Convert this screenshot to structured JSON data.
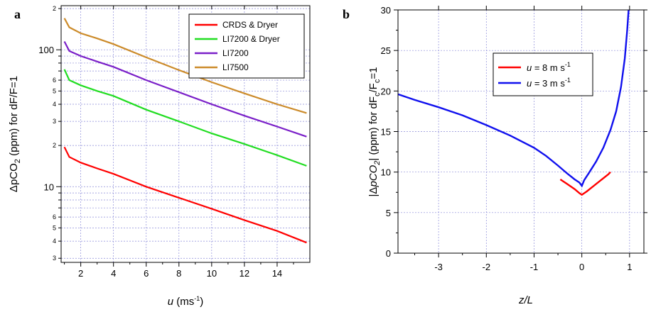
{
  "chart_data": [
    {
      "panel": "a",
      "type": "line",
      "yscale": "log",
      "xlim": [
        0.8,
        16
      ],
      "ylim": [
        2.8,
        210
      ],
      "xticks": [
        2,
        4,
        6,
        8,
        10,
        12,
        14
      ],
      "yticks_major": [
        10,
        100
      ],
      "yticks_minor": [
        3,
        4,
        5,
        6,
        20,
        30,
        40,
        50,
        60,
        200
      ],
      "grid": true,
      "legend_position": "top-right",
      "ylabel_parts": {
        "a": "ΔpCO",
        "sub": "2",
        "b": "  (ppm) for dF/F=1"
      },
      "xlabel_parts": {
        "a": "u",
        "b": " (ms",
        "sup": "-1",
        "c": ")"
      },
      "series": [
        {
          "name": "CRDS & Dryer",
          "color": "#ff0000",
          "x": [
            1,
            1.3,
            2,
            3,
            4,
            6,
            8,
            10,
            12,
            14,
            15.8
          ],
          "y": [
            19.5,
            16.5,
            15,
            13.6,
            12.4,
            10,
            8.3,
            6.9,
            5.7,
            4.75,
            3.9
          ]
        },
        {
          "name": "LI7200 & Dryer",
          "color": "#22dd22",
          "x": [
            1,
            1.3,
            2,
            3,
            4,
            6,
            8,
            10,
            12,
            14,
            15.8
          ],
          "y": [
            72,
            60,
            55,
            50,
            46,
            36.5,
            30,
            24.5,
            20.5,
            17,
            14.2
          ]
        },
        {
          "name": "LI7200",
          "color": "#7a1fc8",
          "x": [
            1,
            1.3,
            2,
            3,
            4,
            6,
            8,
            10,
            12,
            14,
            15.8
          ],
          "y": [
            115,
            98,
            90,
            82,
            75,
            60,
            49,
            40,
            33,
            27.5,
            23.2
          ]
        },
        {
          "name": "LI7500",
          "color": "#cc8b2a",
          "x": [
            1,
            1.3,
            2,
            3,
            4,
            6,
            8,
            10,
            12,
            14,
            15.8
          ],
          "y": [
            170,
            146,
            132,
            121,
            110,
            88,
            71,
            58,
            48,
            40,
            34.5
          ]
        }
      ]
    },
    {
      "panel": "b",
      "type": "line",
      "xlim": [
        -3.85,
        1.3
      ],
      "ylim": [
        0,
        30
      ],
      "xticks": [
        -3,
        -2,
        -1,
        0,
        1
      ],
      "yticks": [
        0,
        5,
        10,
        15,
        20,
        25,
        30
      ],
      "grid": true,
      "legend_position": "top-center",
      "ylabel_parts": {
        "a": "|Δ",
        "b": "pCO",
        "sub": "2",
        "c": "| (ppm) for dF",
        "sub2": "c",
        "d": "/F",
        "sub3": "c",
        "e": "=1"
      },
      "xlabel": "z/L",
      "series": [
        {
          "name": "u = 8 m s-1",
          "label_var": "u",
          "label_text": " = 8 m s",
          "label_sup": "-1",
          "color": "#ff0000",
          "x": [
            -0.45,
            -0.3,
            -0.15,
            -0.05,
            0,
            0.1,
            0.25,
            0.4,
            0.55,
            0.6
          ],
          "y": [
            9.1,
            8.5,
            7.9,
            7.4,
            7.2,
            7.6,
            8.3,
            9.0,
            9.7,
            10.0
          ]
        },
        {
          "name": "u = 3 m s-1",
          "label_var": "u",
          "label_text": " = 3 m s",
          "label_sup": "-1",
          "color": "#1010ee",
          "x": [
            -3.85,
            -3.5,
            -3.0,
            -2.5,
            -2.0,
            -1.5,
            -1.0,
            -0.75,
            -0.5,
            -0.3,
            -0.15,
            -0.05,
            0.0,
            0.05,
            0.15,
            0.3,
            0.45,
            0.6,
            0.72,
            0.82,
            0.9,
            0.95,
            0.98
          ],
          "y": [
            19.6,
            18.9,
            18.0,
            17.0,
            15.8,
            14.5,
            13.0,
            12.0,
            10.8,
            9.8,
            9.1,
            8.7,
            8.3,
            9.0,
            9.9,
            11.3,
            13.0,
            15.2,
            17.5,
            20.5,
            24.0,
            27.5,
            30.0
          ]
        }
      ]
    }
  ],
  "panel_labels": {
    "a": "a",
    "b": "b"
  },
  "tick_text": {
    "a_x": [
      "2",
      "4",
      "6",
      "8",
      "10",
      "12",
      "14"
    ],
    "a_y_major": [
      "10",
      "100"
    ],
    "a_y_minor": [
      "3",
      "4",
      "5",
      "6",
      "2",
      "3",
      "4",
      "5",
      "6",
      "2"
    ],
    "b_x": [
      "-3",
      "-2",
      "-1",
      "0",
      "1"
    ],
    "b_y": [
      "0",
      "5",
      "10",
      "15",
      "20",
      "25",
      "30"
    ]
  }
}
